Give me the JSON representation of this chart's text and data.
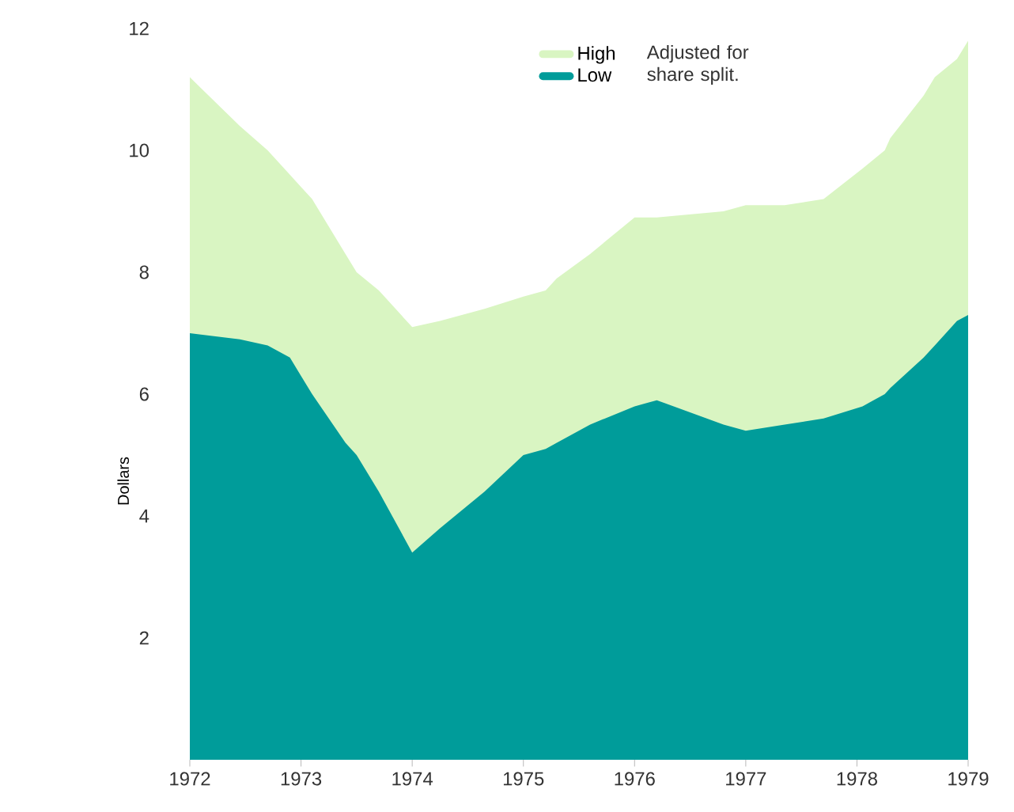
{
  "chart_data": {
    "type": "area",
    "ylabel": "Dollars",
    "x": [
      1972,
      1972.45,
      1972.7,
      1972.9,
      1973.0,
      1973.1,
      1973.4,
      1973.5,
      1973.7,
      1973.85,
      1974,
      1974.25,
      1974.65,
      1975,
      1975.2,
      1975.3,
      1975.6,
      1976,
      1976.2,
      1976.8,
      1977,
      1977.35,
      1977.7,
      1978.05,
      1978.25,
      1978.3,
      1978.6,
      1978.7,
      1978.9,
      1979
    ],
    "series": [
      {
        "name": "High",
        "color": "#d9f5c2",
        "values": [
          11.2,
          10.4,
          10.0,
          9.6,
          9.4,
          9.2,
          8.3,
          8.0,
          7.7,
          7.4,
          7.1,
          7.2,
          7.4,
          7.6,
          7.7,
          7.9,
          8.3,
          8.9,
          8.9,
          9.0,
          9.1,
          9.1,
          9.2,
          9.7,
          10.0,
          10.2,
          10.9,
          11.2,
          11.5,
          11.8
        ]
      },
      {
        "name": "Low",
        "color": "#009c9a",
        "values": [
          7.0,
          6.9,
          6.8,
          6.6,
          6.3,
          6.0,
          5.2,
          5.0,
          4.4,
          3.9,
          3.4,
          3.8,
          4.4,
          5.0,
          5.1,
          5.2,
          5.5,
          5.8,
          5.9,
          5.5,
          5.4,
          5.5,
          5.6,
          5.8,
          6.0,
          6.1,
          6.6,
          6.8,
          7.2,
          7.3
        ]
      }
    ],
    "xlim": [
      1972,
      1979
    ],
    "xticks": [
      1972,
      1973,
      1974,
      1975,
      1976,
      1977,
      1978,
      1979
    ],
    "ylim": [
      0,
      12
    ],
    "yticks": [
      2,
      4,
      6,
      8,
      10,
      12
    ],
    "legend": "top",
    "annotations": [
      "Adjusted for share split."
    ]
  }
}
